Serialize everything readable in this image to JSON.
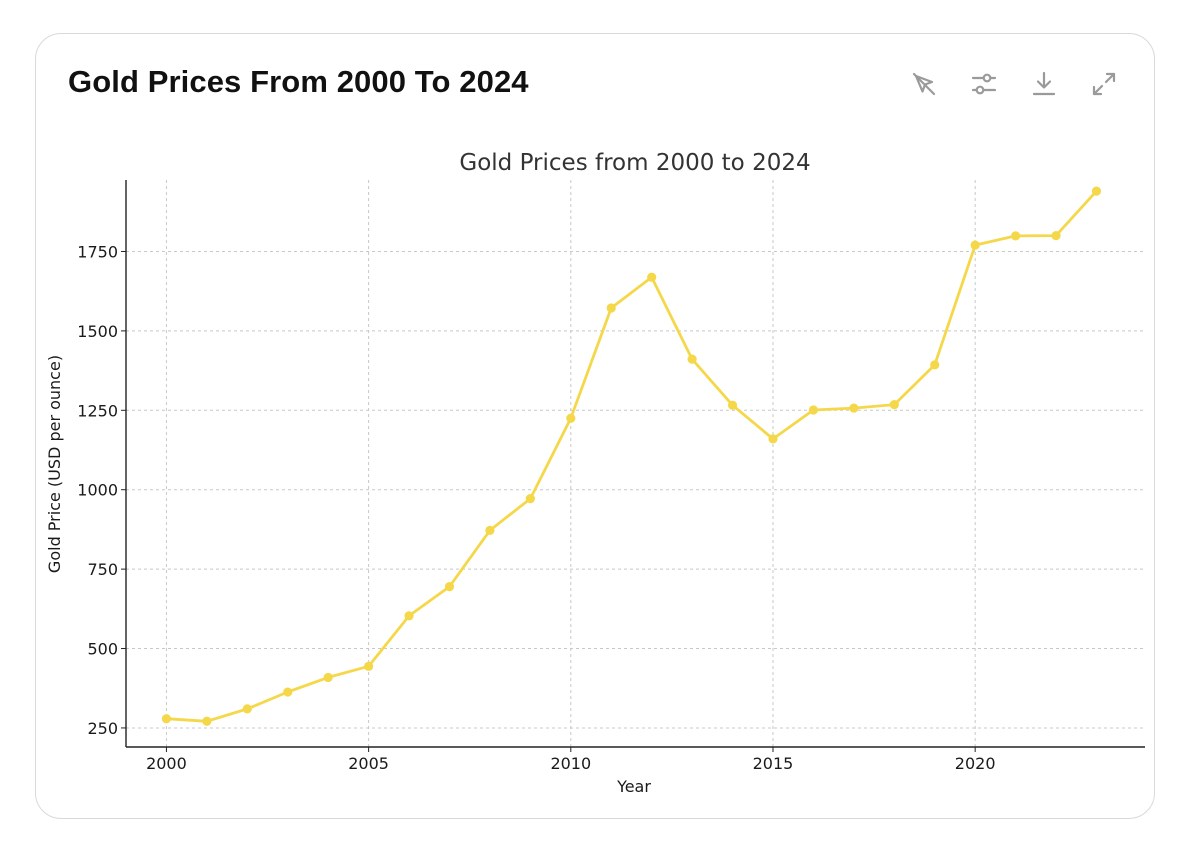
{
  "card": {
    "title": "Gold Prices From 2000 To 2024"
  },
  "toolbar": {
    "buttons": [
      {
        "icon": "interactive-off-icon"
      },
      {
        "icon": "sliders-icon"
      },
      {
        "icon": "download-icon"
      },
      {
        "icon": "expand-icon"
      }
    ],
    "icon_color": "#9a9a9a"
  },
  "chart_data": {
    "type": "line",
    "title": "Gold Prices from 2000 to 2024",
    "xlabel": "Year",
    "ylabel": "Gold Price (USD per ounce)",
    "xlim": [
      1999,
      2024.2
    ],
    "ylim": [
      190,
      1975
    ],
    "xticks": [
      2000,
      2005,
      2010,
      2015,
      2020
    ],
    "yticks": [
      250,
      500,
      750,
      1000,
      1250,
      1500,
      1750
    ],
    "grid": true,
    "color": "#f5d84a",
    "series": [
      {
        "x": [
          2000,
          2001,
          2002,
          2003,
          2004,
          2005,
          2006,
          2007,
          2008,
          2009,
          2010,
          2011,
          2012,
          2013,
          2014,
          2015,
          2016,
          2017,
          2018,
          2019,
          2020,
          2021,
          2022,
          2023
        ],
        "values": [
          279,
          271,
          310,
          363,
          409,
          444,
          603,
          695,
          872,
          972,
          1225,
          1572,
          1669,
          1411,
          1266,
          1160,
          1251,
          1257,
          1268,
          1393,
          1770,
          1799,
          1800,
          1940
        ]
      }
    ]
  }
}
